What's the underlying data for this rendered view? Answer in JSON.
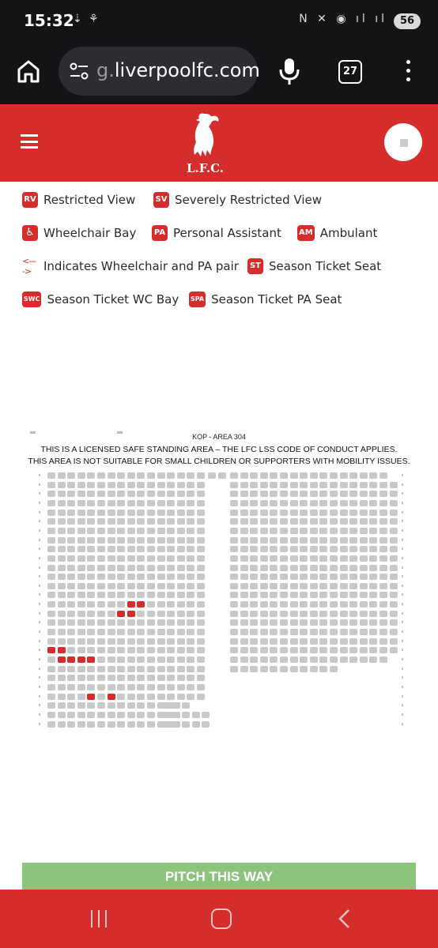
{
  "status_bar": {
    "time": "15:32",
    "left_icons": "⇣ ⚘",
    "right_icons": "N ✕ ◉ ıl ıl",
    "battery": "56"
  },
  "browser": {
    "url_dim": "g.",
    "url_main": "liverpoolfc.com",
    "tab_count": "27"
  },
  "header": {
    "crest_text": "L.F.C."
  },
  "legend": {
    "rv": {
      "badge": "RV",
      "label": "Restricted View"
    },
    "sv": {
      "badge": "SV",
      "label": "Severely Restricted View"
    },
    "wb": {
      "badge": "♿",
      "label": "Wheelchair Bay"
    },
    "pa": {
      "badge": "PA",
      "label": "Personal Assistant"
    },
    "am": {
      "badge": "AM",
      "label": "Ambulant"
    },
    "pair": {
      "icon": "<---->",
      "label": "Indicates Wheelchair and PA pair"
    },
    "st": {
      "badge": "ST",
      "label": "Season Ticket Seat"
    },
    "swc": {
      "badge": "SWC",
      "label": "Season Ticket WC Bay"
    },
    "spa": {
      "badge": "SPA",
      "label": "Season Ticket PA Seat"
    }
  },
  "map": {
    "title": "KOP - AREA 304",
    "notice_1": "THIS IS A LICENSED SAFE STANDING AREA – THE LFC LSS CODE OF CONDUCT APPLIES.",
    "notice_2": "THIS AREA IS NOT SUITABLE FOR SMALL CHILDREN OR SUPPORTERS WITH MOBILITY ISSUES."
  },
  "pitch_label": "PITCH THIS WAY",
  "colors": {
    "lfc_red": "#d52d2c",
    "seat_grey": "#c9c9c9",
    "pitch_green": "#8cc47e",
    "chrome_dark": "#131416"
  }
}
